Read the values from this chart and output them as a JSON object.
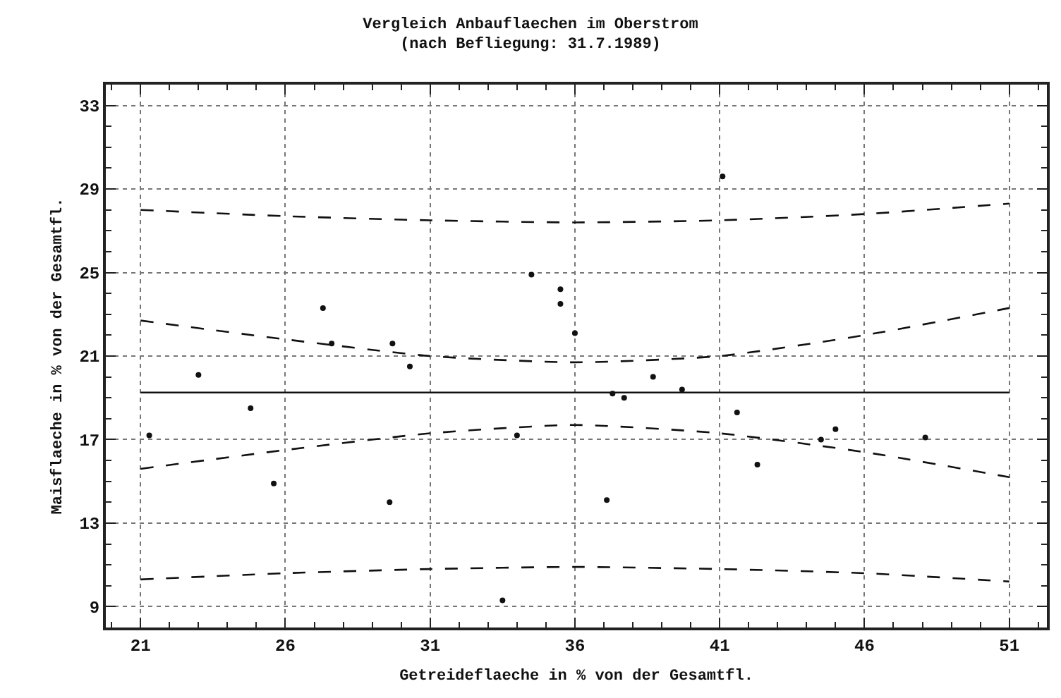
{
  "chart_data": {
    "type": "scatter",
    "title": "Vergleich Anbauflaechen im Oberstrom",
    "subtitle": "(nach Befliegung: 31.7.1989)",
    "xlabel": "Getreideflaeche in % von der Gesamtfl.",
    "ylabel": "Maisflaeche in % von der Gesamtfl.",
    "xlim": [
      19.8,
      52.3
    ],
    "ylim": [
      8,
      34
    ],
    "xticks": [
      21,
      26,
      31,
      36,
      41,
      46,
      51
    ],
    "yticks": [
      9,
      13,
      17,
      21,
      25,
      29,
      33
    ],
    "grid": true,
    "series": [
      {
        "marker": "circle",
        "color": "#111111",
        "x": [
          21.3,
          23.0,
          24.8,
          25.6,
          27.3,
          27.6,
          29.7,
          30.3,
          29.6,
          34.0,
          33.5,
          34.5,
          35.5,
          35.5,
          36.0,
          41.1,
          37.3,
          37.7,
          38.7,
          39.7,
          41.6,
          42.3,
          44.5,
          45.0,
          48.1,
          37.1
        ],
        "values": [
          17.2,
          20.1,
          18.5,
          14.9,
          23.3,
          21.6,
          21.6,
          20.5,
          14.0,
          17.2,
          9.3,
          24.9,
          24.2,
          23.5,
          22.1,
          29.6,
          19.2,
          19.0,
          20.0,
          19.4,
          18.3,
          15.8,
          17.0,
          17.5,
          17.1,
          14.1
        ]
      },
      {
        "type": "line",
        "line_style": "solid",
        "color": "#111111",
        "x": [
          21,
          51
        ],
        "values": [
          19.25,
          19.25
        ]
      },
      {
        "type": "line",
        "line_style": "dashed",
        "color": "#111111",
        "x": [
          21,
          26,
          31,
          36,
          41,
          46,
          51
        ],
        "values": [
          22.7,
          21.8,
          21.0,
          20.7,
          21.0,
          22.0,
          23.3
        ]
      },
      {
        "type": "line",
        "line_style": "dashed",
        "color": "#111111",
        "x": [
          21,
          26,
          31,
          36,
          41,
          46,
          51
        ],
        "values": [
          15.6,
          16.5,
          17.3,
          17.7,
          17.3,
          16.4,
          15.2
        ]
      },
      {
        "type": "line",
        "line_style": "dashed",
        "color": "#111111",
        "x": [
          21,
          26,
          31,
          36,
          41,
          46,
          51
        ],
        "values": [
          28.0,
          27.7,
          27.5,
          27.4,
          27.5,
          27.8,
          28.3
        ]
      },
      {
        "type": "line",
        "line_style": "dashed",
        "color": "#111111",
        "x": [
          21,
          26,
          31,
          36,
          41,
          46,
          51
        ],
        "values": [
          10.3,
          10.6,
          10.8,
          10.9,
          10.8,
          10.6,
          10.2
        ]
      }
    ]
  }
}
